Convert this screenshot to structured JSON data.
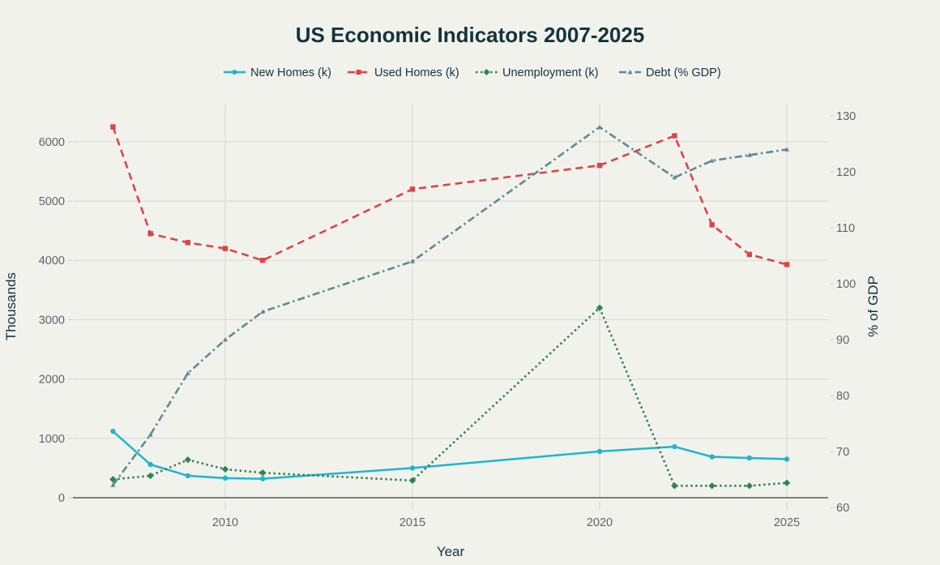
{
  "chart_data": {
    "type": "line",
    "title": "US Economic Indicators 2007-2025",
    "xlabel": "Year",
    "ylabel": "Thousands",
    "y2label": "% of GDP",
    "x": [
      2007,
      2008,
      2009,
      2010,
      2011,
      2015,
      2020,
      2022,
      2023,
      2024,
      2025
    ],
    "xlim": [
      2004.9,
      2026.1
    ],
    "ylim": [
      0,
      6600
    ],
    "y2lim": [
      60,
      131
    ],
    "xticks": [
      2010,
      2015,
      2020,
      2025
    ],
    "yticks": [
      0,
      1000,
      2000,
      3000,
      4000,
      5000,
      6000
    ],
    "y2ticks": [
      60,
      70,
      80,
      90,
      100,
      110,
      120,
      130
    ],
    "grid": true,
    "legend_position": "top-center",
    "series": [
      {
        "name": "New Homes (k)",
        "axis": "left",
        "color": "#1fb5cc",
        "dash": "solid",
        "marker": "circle",
        "values": [
          1120,
          560,
          370,
          330,
          320,
          500,
          780,
          860,
          690,
          670,
          650
        ]
      },
      {
        "name": "Used Homes (k)",
        "axis": "left",
        "color": "#db4545",
        "dash": "dash",
        "marker": "square",
        "values": [
          6250,
          4450,
          4300,
          4200,
          4000,
          5200,
          5600,
          6100,
          4600,
          4100,
          3930
        ]
      },
      {
        "name": "Unemployment (k)",
        "axis": "left",
        "color": "#2e8552",
        "dash": "dot",
        "marker": "diamond",
        "values": [
          310,
          370,
          640,
          480,
          420,
          290,
          3200,
          200,
          200,
          200,
          250
        ]
      },
      {
        "name": "Debt (% GDP)",
        "axis": "right",
        "color": "#5d8a94",
        "dash": "dashdot",
        "marker": "triangle",
        "values": [
          64,
          73,
          84,
          90,
          95,
          104,
          128,
          119,
          122,
          123,
          124
        ]
      }
    ]
  }
}
